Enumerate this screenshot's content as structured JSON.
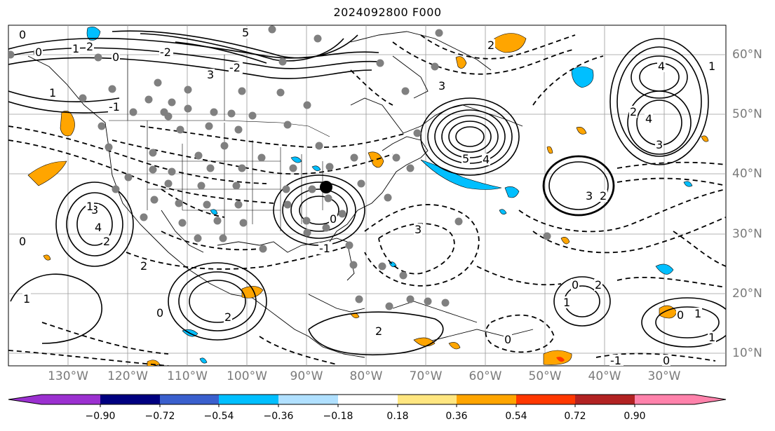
{
  "title": "2024092800 F000",
  "map": {
    "lat_labels": [
      "60°N",
      "50°N",
      "40°N",
      "30°N",
      "20°N",
      "10°N"
    ],
    "lon_labels": [
      "130°W",
      "120°W",
      "110°W",
      "100°W",
      "90°W",
      "80°W",
      "70°W",
      "60°W",
      "50°W",
      "40°W",
      "30°W"
    ],
    "contour_labels": [
      "0",
      "1",
      "2",
      "3",
      "5",
      "-2",
      "3",
      "2",
      "0",
      "1",
      "4",
      "5",
      "4",
      "3",
      "4",
      "2",
      "3",
      "2",
      "3",
      "4",
      "2",
      "1",
      "0",
      "2",
      "3",
      "0",
      "1",
      "2",
      "0",
      "-1",
      "0",
      "1",
      "2",
      "1",
      "0",
      "-2",
      "-1",
      "0",
      "2",
      "1",
      "0",
      "1",
      "0",
      "-1"
    ]
  },
  "colorbar": {
    "ticks": [
      "−0.90",
      "−0.72",
      "−0.54",
      "−0.36",
      "−0.18",
      "0.18",
      "0.36",
      "0.54",
      "0.72",
      "0.90"
    ],
    "colors": [
      "#9b30d0",
      "#000080",
      "#3a5fcd",
      "#00bfff",
      "#b0e0ff",
      "#ffffff",
      "#ffe680",
      "#ffa500",
      "#ff3800",
      "#b22222",
      "#ff82ab"
    ]
  }
}
